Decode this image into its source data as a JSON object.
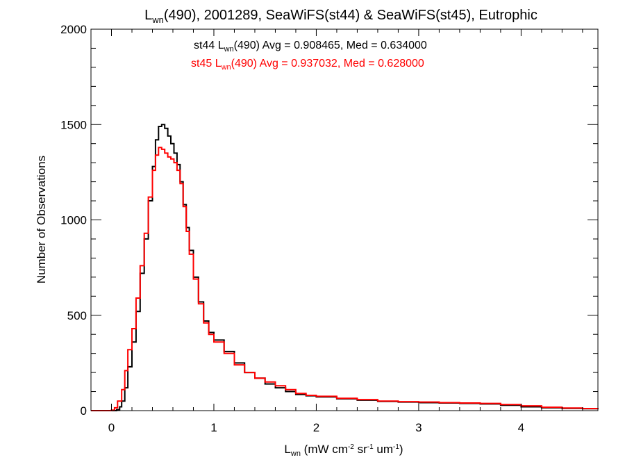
{
  "chart_data": {
    "type": "line",
    "step": true,
    "title": {
      "prefix": "L",
      "prefix_sub": "wn",
      "rest": "(490), 2001289, SeaWiFS(st44) & SeaWiFS(st45), Eutrophic"
    },
    "xlabel": {
      "main": "L",
      "main_sub": "wn",
      "p1": " (mW cm",
      "sup1": "-2",
      "p2": " sr",
      "sup2": "-1",
      "p3": " um",
      "sup3": "-1",
      "p4": ")"
    },
    "ylabel": "Number of Observations",
    "xlim": [
      -0.2,
      4.75
    ],
    "ylim": [
      0,
      2000
    ],
    "xticks": [
      "0",
      "1",
      "2",
      "3",
      "4"
    ],
    "yticks": [
      "0",
      "500",
      "1000",
      "1500",
      "2000"
    ],
    "grid": false,
    "annotations": [
      {
        "pre": "st44 L",
        "sub": "wn",
        "post": "(490) Avg = 0.908465, Med = 0.634000",
        "color": "#000000"
      },
      {
        "pre": "st45 L",
        "sub": "wn",
        "post": "(490) Avg = 0.937032, Med = 0.628000",
        "color": "#ff0000"
      }
    ],
    "series": [
      {
        "color": "#000000",
        "points": [
          [
            -0.2,
            0
          ],
          [
            0.02,
            0
          ],
          [
            0.05,
            5
          ],
          [
            0.08,
            20
          ],
          [
            0.1,
            50
          ],
          [
            0.13,
            120
          ],
          [
            0.16,
            230
          ],
          [
            0.2,
            360
          ],
          [
            0.24,
            520
          ],
          [
            0.28,
            720
          ],
          [
            0.32,
            900
          ],
          [
            0.36,
            1100
          ],
          [
            0.4,
            1280
          ],
          [
            0.43,
            1420
          ],
          [
            0.46,
            1490
          ],
          [
            0.49,
            1500
          ],
          [
            0.52,
            1480
          ],
          [
            0.55,
            1440
          ],
          [
            0.58,
            1400
          ],
          [
            0.61,
            1350
          ],
          [
            0.64,
            1290
          ],
          [
            0.67,
            1200
          ],
          [
            0.7,
            1080
          ],
          [
            0.73,
            960
          ],
          [
            0.76,
            840
          ],
          [
            0.8,
            700
          ],
          [
            0.85,
            570
          ],
          [
            0.9,
            470
          ],
          [
            0.95,
            410
          ],
          [
            1.0,
            370
          ],
          [
            1.1,
            310
          ],
          [
            1.2,
            250
          ],
          [
            1.3,
            200
          ],
          [
            1.4,
            170
          ],
          [
            1.5,
            140
          ],
          [
            1.6,
            120
          ],
          [
            1.7,
            100
          ],
          [
            1.8,
            85
          ],
          [
            1.9,
            78
          ],
          [
            2.0,
            72
          ],
          [
            2.2,
            62
          ],
          [
            2.4,
            55
          ],
          [
            2.6,
            48
          ],
          [
            2.8,
            45
          ],
          [
            3.0,
            42
          ],
          [
            3.2,
            40
          ],
          [
            3.4,
            38
          ],
          [
            3.6,
            35
          ],
          [
            3.8,
            28
          ],
          [
            4.0,
            20
          ],
          [
            4.2,
            15
          ],
          [
            4.4,
            12
          ],
          [
            4.6,
            10
          ],
          [
            4.75,
            8
          ]
        ]
      },
      {
        "color": "#ff0000",
        "points": [
          [
            -0.2,
            0
          ],
          [
            0.0,
            3
          ],
          [
            0.03,
            15
          ],
          [
            0.06,
            50
          ],
          [
            0.1,
            110
          ],
          [
            0.13,
            210
          ],
          [
            0.16,
            320
          ],
          [
            0.2,
            430
          ],
          [
            0.24,
            590
          ],
          [
            0.28,
            760
          ],
          [
            0.32,
            930
          ],
          [
            0.36,
            1120
          ],
          [
            0.4,
            1260
          ],
          [
            0.43,
            1340
          ],
          [
            0.46,
            1380
          ],
          [
            0.49,
            1370
          ],
          [
            0.52,
            1350
          ],
          [
            0.55,
            1330
          ],
          [
            0.58,
            1320
          ],
          [
            0.61,
            1300
          ],
          [
            0.64,
            1260
          ],
          [
            0.67,
            1190
          ],
          [
            0.7,
            1070
          ],
          [
            0.73,
            940
          ],
          [
            0.76,
            820
          ],
          [
            0.8,
            690
          ],
          [
            0.85,
            560
          ],
          [
            0.9,
            460
          ],
          [
            0.95,
            400
          ],
          [
            1.0,
            360
          ],
          [
            1.1,
            300
          ],
          [
            1.2,
            240
          ],
          [
            1.3,
            200
          ],
          [
            1.4,
            170
          ],
          [
            1.5,
            150
          ],
          [
            1.6,
            130
          ],
          [
            1.7,
            110
          ],
          [
            1.8,
            90
          ],
          [
            1.9,
            80
          ],
          [
            2.0,
            75
          ],
          [
            2.2,
            65
          ],
          [
            2.4,
            58
          ],
          [
            2.6,
            50
          ],
          [
            2.8,
            47
          ],
          [
            3.0,
            45
          ],
          [
            3.2,
            42
          ],
          [
            3.4,
            40
          ],
          [
            3.6,
            38
          ],
          [
            3.8,
            32
          ],
          [
            4.0,
            25
          ],
          [
            4.2,
            18
          ],
          [
            4.4,
            14
          ],
          [
            4.6,
            11
          ],
          [
            4.75,
            10
          ]
        ]
      }
    ]
  }
}
